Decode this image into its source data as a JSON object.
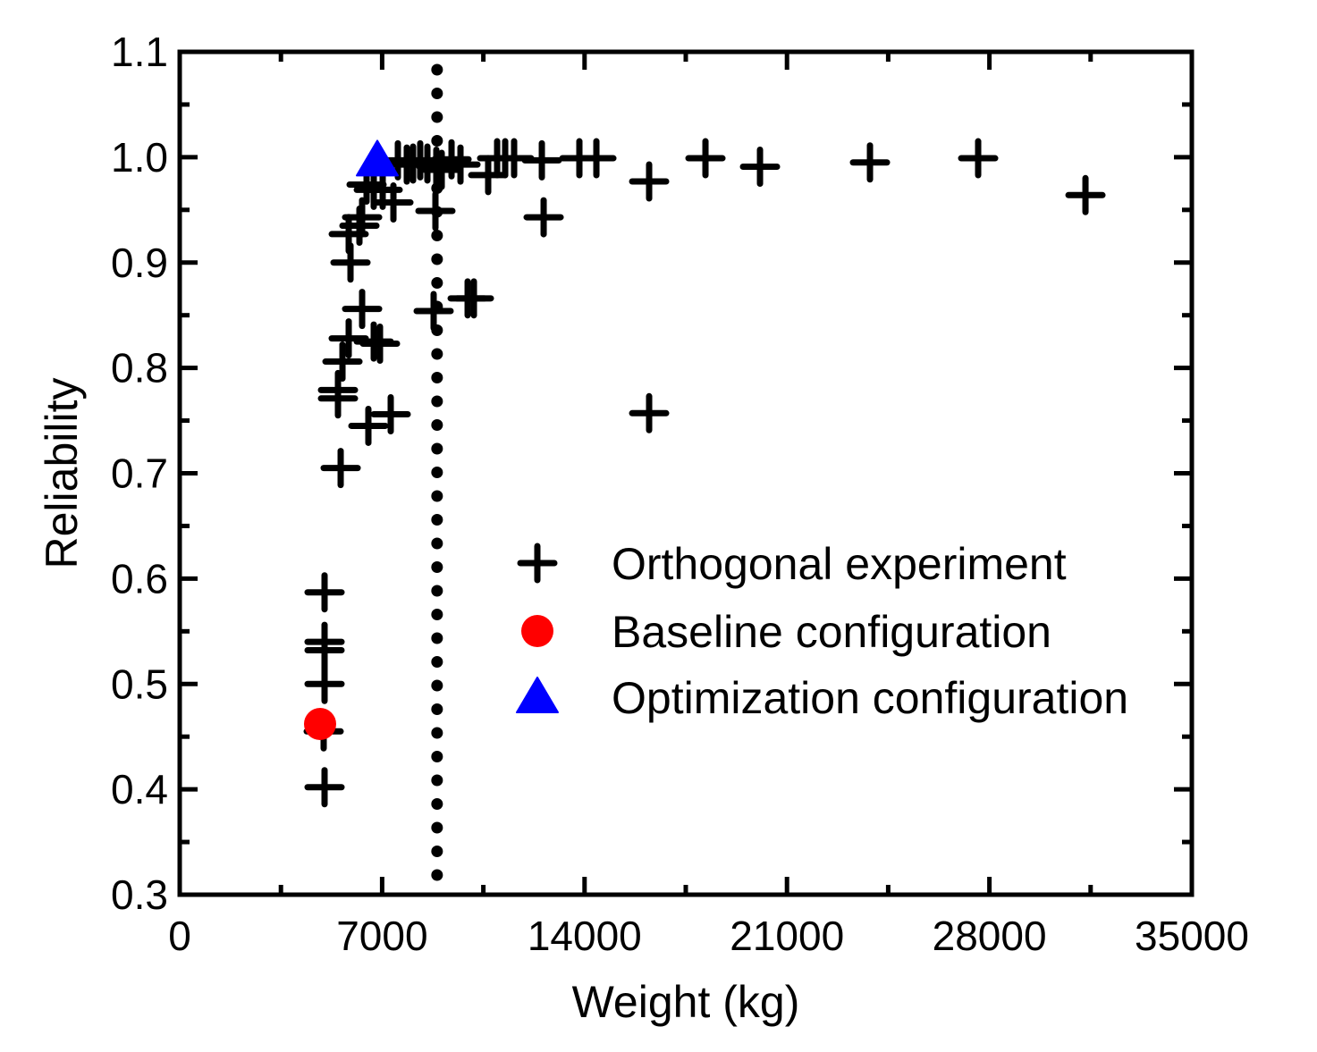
{
  "chart_data": {
    "type": "scatter",
    "title": "",
    "xlabel": "Weight (kg)",
    "ylabel": "Reliability",
    "xlim": [
      0,
      35000
    ],
    "ylim": [
      0.3,
      1.1
    ],
    "x_ticks": [
      0,
      7000,
      14000,
      21000,
      28000,
      35000
    ],
    "x_tick_labels": [
      "0",
      "7000",
      "14000",
      "21000",
      "28000",
      "35000"
    ],
    "x_minor_ticks": [
      3500,
      10500,
      17500,
      24500,
      31500
    ],
    "y_ticks": [
      0.3,
      0.4,
      0.5,
      0.6,
      0.7,
      0.8,
      0.9,
      1.0,
      1.1
    ],
    "y_tick_labels": [
      "0.3",
      "0.4",
      "0.5",
      "0.6",
      "0.7",
      "0.8",
      "0.9",
      "1.0",
      "1.1"
    ],
    "y_minor_ticks": [
      0.35,
      0.45,
      0.55,
      0.65,
      0.75,
      0.85,
      0.95,
      1.05
    ],
    "grid": false,
    "legend_position": "center-right",
    "reference_line": {
      "type": "vertical",
      "x": 8900,
      "style": "dotted",
      "color": "#000000"
    },
    "series": [
      {
        "name": "Orthogonal experiment",
        "marker": "plus",
        "color": "#000000",
        "points": [
          [
            5009,
            0.402
          ],
          [
            4978,
            0.455
          ],
          [
            5009,
            0.5
          ],
          [
            5009,
            0.532
          ],
          [
            5009,
            0.54
          ],
          [
            5009,
            0.587
          ],
          [
            5566,
            0.705
          ],
          [
            5473,
            0.771
          ],
          [
            5473,
            0.779
          ],
          [
            5628,
            0.806
          ],
          [
            5844,
            0.828
          ],
          [
            6308,
            0.856
          ],
          [
            5906,
            0.9
          ],
          [
            5844,
            0.927
          ],
          [
            6215,
            0.935
          ],
          [
            6308,
            0.943
          ],
          [
            6524,
            0.745
          ],
          [
            7297,
            0.756
          ],
          [
            6710,
            0.825
          ],
          [
            6926,
            0.823
          ],
          [
            6462,
            0.974
          ],
          [
            6710,
            0.969
          ],
          [
            7019,
            0.969
          ],
          [
            7390,
            0.957
          ],
          [
            8781,
            0.854
          ],
          [
            8843,
            0.949
          ],
          [
            9957,
            0.866
          ],
          [
            10173,
            0.866
          ],
          [
            7544,
            0.997
          ],
          [
            7853,
            0.993
          ],
          [
            8070,
            0.994
          ],
          [
            8317,
            0.997
          ],
          [
            8565,
            0.994
          ],
          [
            8874,
            0.991
          ],
          [
            9060,
            0.988
          ],
          [
            9400,
            0.998
          ],
          [
            9709,
            0.993
          ],
          [
            10667,
            0.983
          ],
          [
            10977,
            0.999
          ],
          [
            11255,
            0.999
          ],
          [
            11564,
            0.999
          ],
          [
            12523,
            0.997
          ],
          [
            12585,
            0.943
          ],
          [
            13821,
            0.999
          ],
          [
            14409,
            0.999
          ],
          [
            16233,
            0.757
          ],
          [
            16233,
            0.977
          ],
          [
            18181,
            0.999
          ],
          [
            20067,
            0.991
          ],
          [
            23870,
            0.995
          ],
          [
            27611,
            0.999
          ],
          [
            31322,
            0.964
          ]
        ]
      },
      {
        "name": "Baseline configuration",
        "marker": "circle",
        "color": "#ff0000",
        "points": [
          [
            4854,
            0.462
          ]
        ]
      },
      {
        "name": "Optimization configuration",
        "marker": "triangle",
        "color": "#0000ff",
        "points": [
          [
            6833,
            0.997
          ]
        ]
      }
    ]
  }
}
